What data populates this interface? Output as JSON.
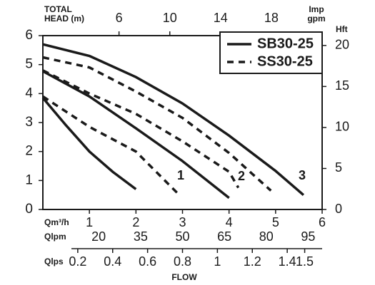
{
  "chart_data": {
    "type": "line",
    "y_label": [
      "TOTAL",
      "HEAD (m)"
    ],
    "x_title": "FLOW",
    "xlim": [
      0,
      6
    ],
    "xticks": [
      1,
      2,
      3,
      4,
      5,
      6
    ],
    "x_label": "Qm³/h",
    "ylim": [
      0,
      6
    ],
    "yticks": [
      0,
      1,
      2,
      3,
      4,
      5,
      6
    ],
    "y2lim": [
      0,
      21.2
    ],
    "y2ticks": [
      0,
      5,
      10,
      15,
      20
    ],
    "y2_label": "Hft",
    "top_axis": {
      "label": [
        "Imp",
        "gpm"
      ],
      "xlim": [
        0,
        22
      ],
      "xticks": [
        6,
        10,
        14,
        18
      ]
    },
    "bottom_axes": [
      {
        "label": "Qlpm",
        "xlim": [
          0,
          100
        ],
        "xticks": [
          20,
          35,
          50,
          65,
          80,
          95
        ]
      },
      {
        "label": "Qlps",
        "xlim": [
          0,
          1.6
        ],
        "xticks": [
          0.2,
          0.4,
          0.6,
          0.8,
          1,
          1.2,
          1.4,
          1.5
        ]
      }
    ],
    "legend": "upper right",
    "curve_labels": [
      "1",
      "2",
      "3"
    ],
    "series": [
      {
        "name": "SB30-25",
        "dashed": false,
        "color": "#1a1a1a",
        "curves": [
          {
            "x": [
              0,
              0.5,
              1,
              1.5,
              2
            ],
            "values": [
              3.85,
              2.9,
              2.0,
              1.3,
              0.7
            ]
          },
          {
            "x": [
              0,
              1,
              2,
              3,
              4
            ],
            "values": [
              4.77,
              3.9,
              2.8,
              1.67,
              0.4
            ]
          },
          {
            "x": [
              0,
              1,
              2,
              3,
              4,
              5,
              5.6
            ],
            "values": [
              5.7,
              5.3,
              4.57,
              3.66,
              2.55,
              1.33,
              0.5
            ]
          }
        ]
      },
      {
        "name": "SS30-25",
        "dashed": true,
        "color": "#1a1a1a",
        "curves": [
          {
            "x": [
              0,
              1,
              2,
              2.9
            ],
            "values": [
              3.9,
              2.85,
              2.0,
              0.55
            ]
          },
          {
            "x": [
              0,
              1,
              2,
              3,
              4,
              4.2
            ],
            "values": [
              4.8,
              4.0,
              3.3,
              2.35,
              1.3,
              0.75
            ]
          },
          {
            "x": [
              0,
              1,
              2,
              3,
              4,
              4.9
            ],
            "values": [
              5.25,
              4.9,
              4.07,
              3.16,
              1.95,
              0.65
            ]
          }
        ]
      }
    ]
  }
}
